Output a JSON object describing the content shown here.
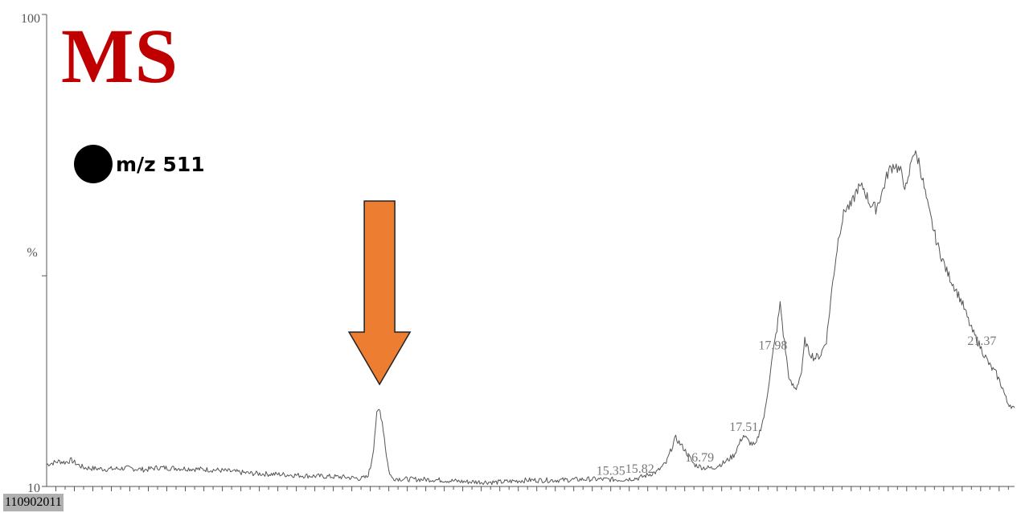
{
  "title": "MS",
  "legend": {
    "label": "m/z 511"
  },
  "run_id": "110902011",
  "colors": {
    "title": "#c00000",
    "arrow_fill": "#ed7d31",
    "trace": "#555555",
    "axis": "#555555",
    "peak_label": "#777777"
  },
  "chart_data": {
    "type": "line",
    "title": "MS",
    "xlabel": "",
    "ylabel": "%",
    "y_tick_labels": [
      "100",
      "10"
    ],
    "ylim": [
      10,
      100
    ],
    "xlim": [
      6.2,
      21.9
    ],
    "grid": false,
    "legend_position": "top-left",
    "series": [
      {
        "name": "m/z 511",
        "points": [
          [
            6.2,
            14.2
          ],
          [
            6.3,
            14.5
          ],
          [
            6.4,
            14.8
          ],
          [
            6.5,
            14.6
          ],
          [
            6.6,
            15.0
          ],
          [
            6.7,
            14.2
          ],
          [
            6.8,
            13.6
          ],
          [
            7.0,
            13.4
          ],
          [
            7.2,
            13.3
          ],
          [
            7.5,
            13.5
          ],
          [
            7.8,
            13.2
          ],
          [
            8.0,
            13.6
          ],
          [
            8.5,
            13.4
          ],
          [
            9.0,
            13.1
          ],
          [
            9.5,
            12.5
          ],
          [
            10.0,
            12.3
          ],
          [
            10.5,
            12.0
          ],
          [
            11.0,
            11.8
          ],
          [
            11.3,
            11.5
          ],
          [
            11.4,
            11.8
          ],
          [
            11.45,
            13.5
          ],
          [
            11.5,
            17.0
          ],
          [
            11.55,
            23.5
          ],
          [
            11.6,
            24.8
          ],
          [
            11.65,
            22.0
          ],
          [
            11.7,
            17.0
          ],
          [
            11.75,
            13.0
          ],
          [
            11.8,
            11.6
          ],
          [
            12.0,
            11.4
          ],
          [
            12.5,
            11.3
          ],
          [
            13.0,
            10.9
          ],
          [
            13.5,
            10.8
          ],
          [
            14.0,
            11.2
          ],
          [
            14.5,
            11.2
          ],
          [
            15.0,
            11.4
          ],
          [
            15.5,
            11.3
          ],
          [
            15.8,
            11.6
          ],
          [
            16.1,
            12.8
          ],
          [
            16.25,
            14.5
          ],
          [
            16.4,
            19.3
          ],
          [
            16.55,
            17.0
          ],
          [
            16.7,
            14.2
          ],
          [
            16.85,
            13.6
          ],
          [
            17.0,
            13.5
          ],
          [
            17.2,
            14.6
          ],
          [
            17.35,
            16.0
          ],
          [
            17.5,
            19.8
          ],
          [
            17.6,
            18.4
          ],
          [
            17.7,
            17.7
          ],
          [
            17.85,
            24.0
          ],
          [
            17.95,
            33.0
          ],
          [
            18.05,
            40.5
          ],
          [
            18.1,
            45.0
          ],
          [
            18.15,
            39.0
          ],
          [
            18.25,
            30.0
          ],
          [
            18.35,
            28.5
          ],
          [
            18.45,
            32.0
          ],
          [
            18.5,
            38.0
          ],
          [
            18.55,
            36.0
          ],
          [
            18.65,
            34.5
          ],
          [
            18.75,
            35.0
          ],
          [
            18.85,
            38.0
          ],
          [
            18.95,
            49.0
          ],
          [
            19.05,
            58.0
          ],
          [
            19.15,
            63.0
          ],
          [
            19.25,
            63.5
          ],
          [
            19.35,
            66.8
          ],
          [
            19.45,
            67.0
          ],
          [
            19.55,
            64.0
          ],
          [
            19.65,
            63.0
          ],
          [
            19.75,
            66.0
          ],
          [
            19.85,
            70.0
          ],
          [
            19.95,
            71.5
          ],
          [
            20.05,
            70.0
          ],
          [
            20.15,
            66.5
          ],
          [
            20.25,
            74.0
          ],
          [
            20.35,
            72.0
          ],
          [
            20.5,
            63.0
          ],
          [
            20.65,
            56.0
          ],
          [
            20.8,
            51.0
          ],
          [
            20.95,
            47.5
          ],
          [
            21.05,
            45.0
          ],
          [
            21.2,
            40.0
          ],
          [
            21.35,
            36.5
          ],
          [
            21.5,
            33.0
          ],
          [
            21.6,
            31.5
          ],
          [
            21.7,
            29.0
          ],
          [
            21.78,
            26.0
          ],
          [
            21.85,
            25.5
          ],
          [
            21.9,
            24.5
          ]
        ]
      }
    ],
    "peak_labels": [
      {
        "x": 15.35,
        "label": "15.35"
      },
      {
        "x": 15.82,
        "label": "15.82"
      },
      {
        "x": 16.79,
        "label": "16.79"
      },
      {
        "x": 17.51,
        "label": "17.51"
      },
      {
        "x": 17.98,
        "label": "17.98"
      },
      {
        "x": 21.37,
        "label": "21.37"
      }
    ],
    "annotations": [
      {
        "type": "arrow",
        "direction": "down",
        "x": 11.6
      }
    ]
  }
}
